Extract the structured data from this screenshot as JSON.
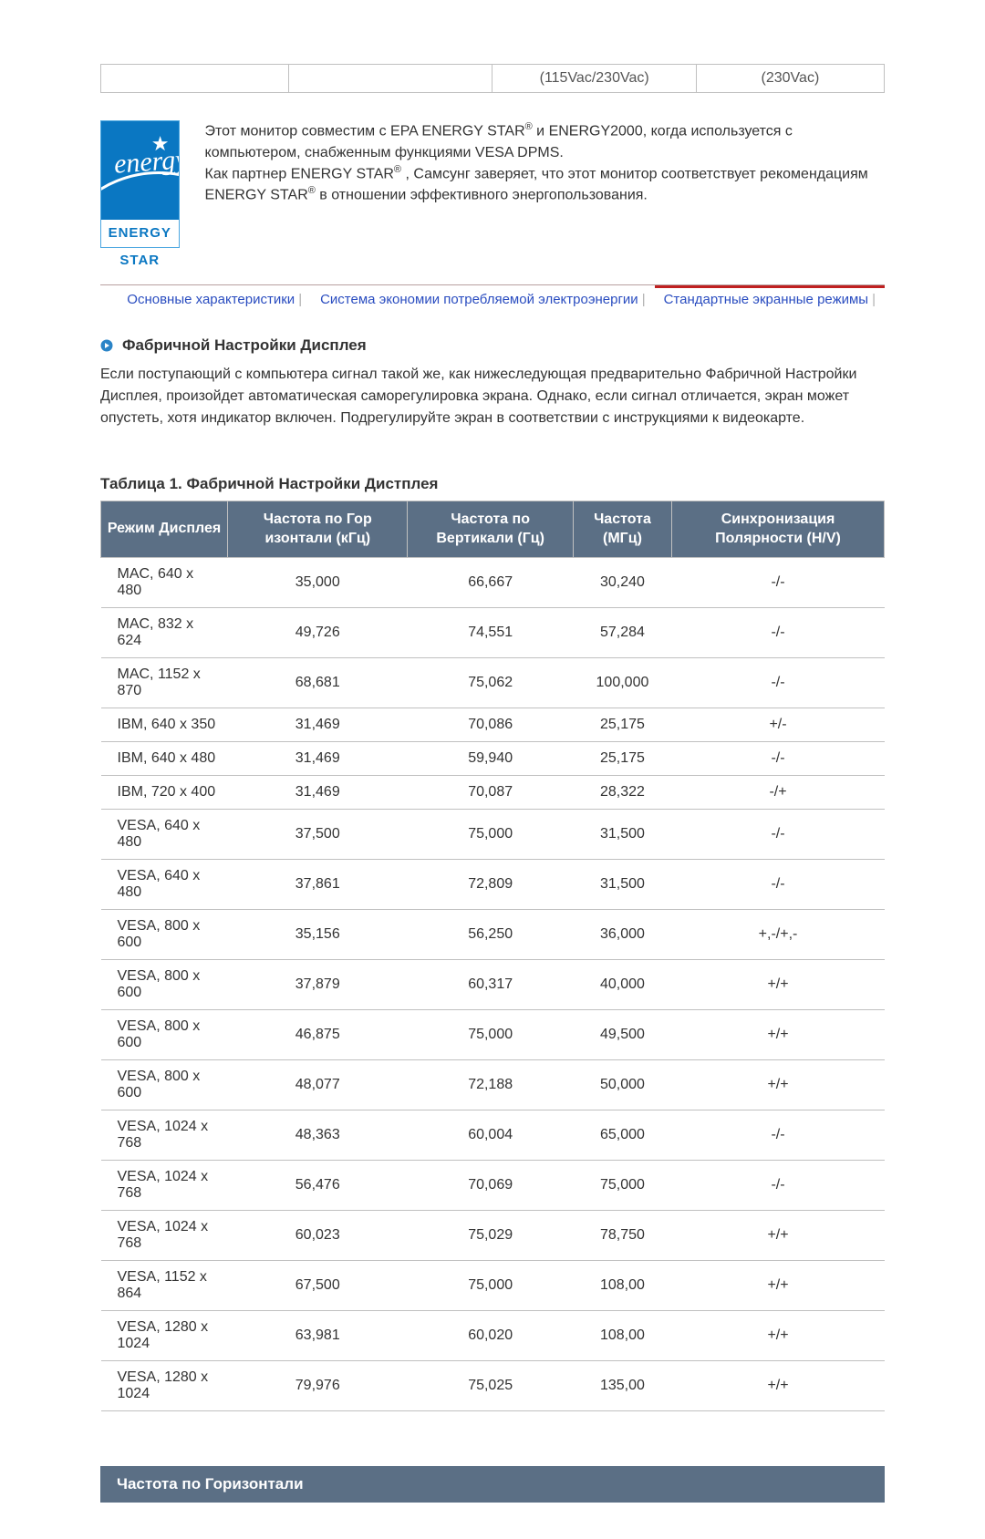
{
  "top_row": {
    "c3": "(115Vac/230Vac)",
    "c4": "(230Vac)"
  },
  "energy_logo": {
    "script": "energy",
    "label": "ENERGY STAR"
  },
  "energy_paragraph": {
    "p1a": "Этот монитор совместим с EPA ENERGY STAR",
    "p1b": " и ENERGY2000, когда используется с компьютером, снабженным функциями VESA DPMS.",
    "p2a": "Как партнер ENERGY STAR",
    "p2b": " , Самсунг заверяет, что этот монитор соответствует рекомендациям ENERGY STAR",
    "p2c": " в отношении эффективного энергопользования.",
    "reg": "®"
  },
  "tabs": {
    "t1": "Основные характеристики",
    "t2": "Система экономии потребляемой электроэнергии",
    "t3": "Стандартные экранные режимы"
  },
  "section": {
    "title": "Фабричной Настройки Дисплея",
    "body": "Если поступающий с компьютера сигнал такой же, как нижеследующая предварительно Фабричной Настройки Дисплея, произойдет автоматическая саморегулировка экрана. Однако, если сигнал отличается, экран может опустеть, хотя индикатор включен. Подрегулируйте экран в соответствии с инструкциями к видеокарте."
  },
  "table": {
    "caption": "Таблица 1. Фабричной Настройки Дистплея",
    "headers": {
      "mode": "Режим Дисплея",
      "hfreq": "Частота по Гор изонтали (кГц)",
      "vfreq": "Частота по Вертикали (Гц)",
      "pclock": "Частота (МГц)",
      "sync": "Синхронизация Полярности (H/V)"
    },
    "header_bg": "#5b6f85",
    "rows": [
      [
        "MAC, 640 x 480",
        "35,000",
        "66,667",
        "30,240",
        "-/-"
      ],
      [
        "MAC, 832 x 624",
        "49,726",
        "74,551",
        "57,284",
        "-/-"
      ],
      [
        "MAC, 1152 x 870",
        "68,681",
        "75,062",
        "100,000",
        "-/-"
      ],
      [
        "IBM, 640 x 350",
        "31,469",
        "70,086",
        "25,175",
        "+/-"
      ],
      [
        "IBM, 640 x 480",
        "31,469",
        "59,940",
        "25,175",
        "-/-"
      ],
      [
        "IBM, 720 x 400",
        "31,469",
        "70,087",
        "28,322",
        "-/+"
      ],
      [
        "VESA, 640 x 480",
        "37,500",
        "75,000",
        "31,500",
        "-/-"
      ],
      [
        "VESA, 640 x 480",
        "37,861",
        "72,809",
        "31,500",
        "-/-"
      ],
      [
        "VESA, 800 x 600",
        "35,156",
        "56,250",
        "36,000",
        "+,-/+,-"
      ],
      [
        "VESA, 800 x 600",
        "37,879",
        "60,317",
        "40,000",
        "+/+"
      ],
      [
        "VESA, 800 x 600",
        "46,875",
        "75,000",
        "49,500",
        "+/+"
      ],
      [
        "VESA, 800 x 600",
        "48,077",
        "72,188",
        "50,000",
        "+/+"
      ],
      [
        "VESA, 1024 x 768",
        "48,363",
        "60,004",
        "65,000",
        "-/-"
      ],
      [
        "VESA, 1024 x 768",
        "56,476",
        "70,069",
        "75,000",
        "-/-"
      ],
      [
        "VESA, 1024 x 768",
        "60,023",
        "75,029",
        "78,750",
        "+/+"
      ],
      [
        "VESA, 1152 x 864",
        "67,500",
        "75,000",
        "108,00",
        "+/+"
      ],
      [
        "VESA, 1280 x 1024",
        "63,981",
        "60,020",
        "108,00",
        "+/+"
      ],
      [
        "VESA, 1280 x 1024",
        "79,976",
        "75,025",
        "135,00",
        "+/+"
      ]
    ]
  },
  "footer": {
    "title": "Частота по Горизонтали"
  }
}
